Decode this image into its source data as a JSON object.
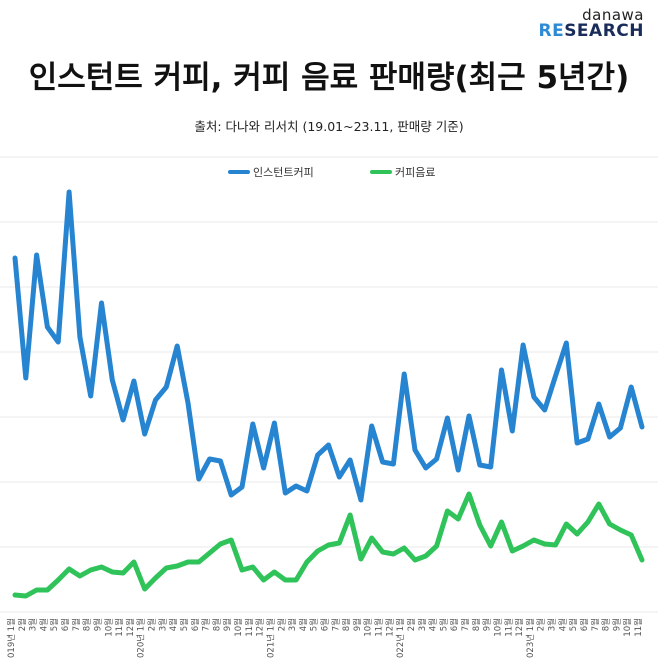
{
  "brand": {
    "top": "danawa",
    "bottom_accent": "RE",
    "bottom_rest": "SEARCH"
  },
  "chart_data": {
    "type": "line",
    "title": "인스턴트 커피, 커피 음료 판매량(최근 5년간)",
    "subtitle": "출처: 다나와 리서치 (19.01~23.11, 판매량 기준)",
    "xlabel": "",
    "ylabel": "",
    "grid": true,
    "legend_position": "top-center",
    "colors": {
      "instant": "#2684d1",
      "drink": "#2fc35a"
    },
    "categories": [
      "2019년 1월",
      "2월",
      "3월",
      "4월",
      "5월",
      "6월",
      "7월",
      "8월",
      "9월",
      "10월",
      "11월",
      "12월",
      "2020년 1월",
      "2월",
      "3월",
      "4월",
      "5월",
      "6월",
      "7월",
      "8월",
      "9월",
      "10월",
      "11월",
      "12월",
      "2021년 1월",
      "2월",
      "3월",
      "4월",
      "5월",
      "6월",
      "7월",
      "8월",
      "9월",
      "10월",
      "11월",
      "12월",
      "2022년 1월",
      "2월",
      "3월",
      "4월",
      "5월",
      "6월",
      "7월",
      "8월",
      "9월",
      "10월",
      "11월",
      "12월",
      "2023년 1월",
      "2월",
      "3월",
      "4월",
      "5월",
      "6월",
      "7월",
      "8월",
      "9월",
      "10월",
      "11월"
    ],
    "series": [
      {
        "name": "인스턴트커피",
        "key": "instant",
        "values": [
          258,
          378,
          255,
          327,
          342,
          192,
          337,
          396,
          303,
          380,
          420,
          381,
          434,
          400,
          387,
          346,
          403,
          479,
          459,
          461,
          495,
          487,
          424,
          468,
          423,
          493,
          486,
          491,
          455,
          445,
          477,
          460,
          500,
          426,
          462,
          464,
          374,
          450,
          468,
          459,
          418,
          470,
          416,
          465,
          467,
          370,
          431,
          345,
          397,
          410,
          376,
          343,
          443,
          439,
          404,
          437,
          428,
          387,
          427
        ]
      },
      {
        "name": "커피음료",
        "key": "drink",
        "values": [
          595,
          596,
          590,
          590,
          580,
          569,
          576,
          570,
          567,
          572,
          573,
          562,
          589,
          578,
          568,
          566,
          562,
          562,
          553,
          544,
          540,
          570,
          567,
          580,
          572,
          580,
          580,
          562,
          551,
          545,
          543,
          515,
          559,
          538,
          552,
          554,
          548,
          560,
          556,
          546,
          511,
          519,
          494,
          525,
          546,
          522,
          551,
          546,
          540,
          544,
          545,
          524,
          534,
          522,
          504,
          524,
          530,
          535,
          560
        ]
      }
    ]
  }
}
